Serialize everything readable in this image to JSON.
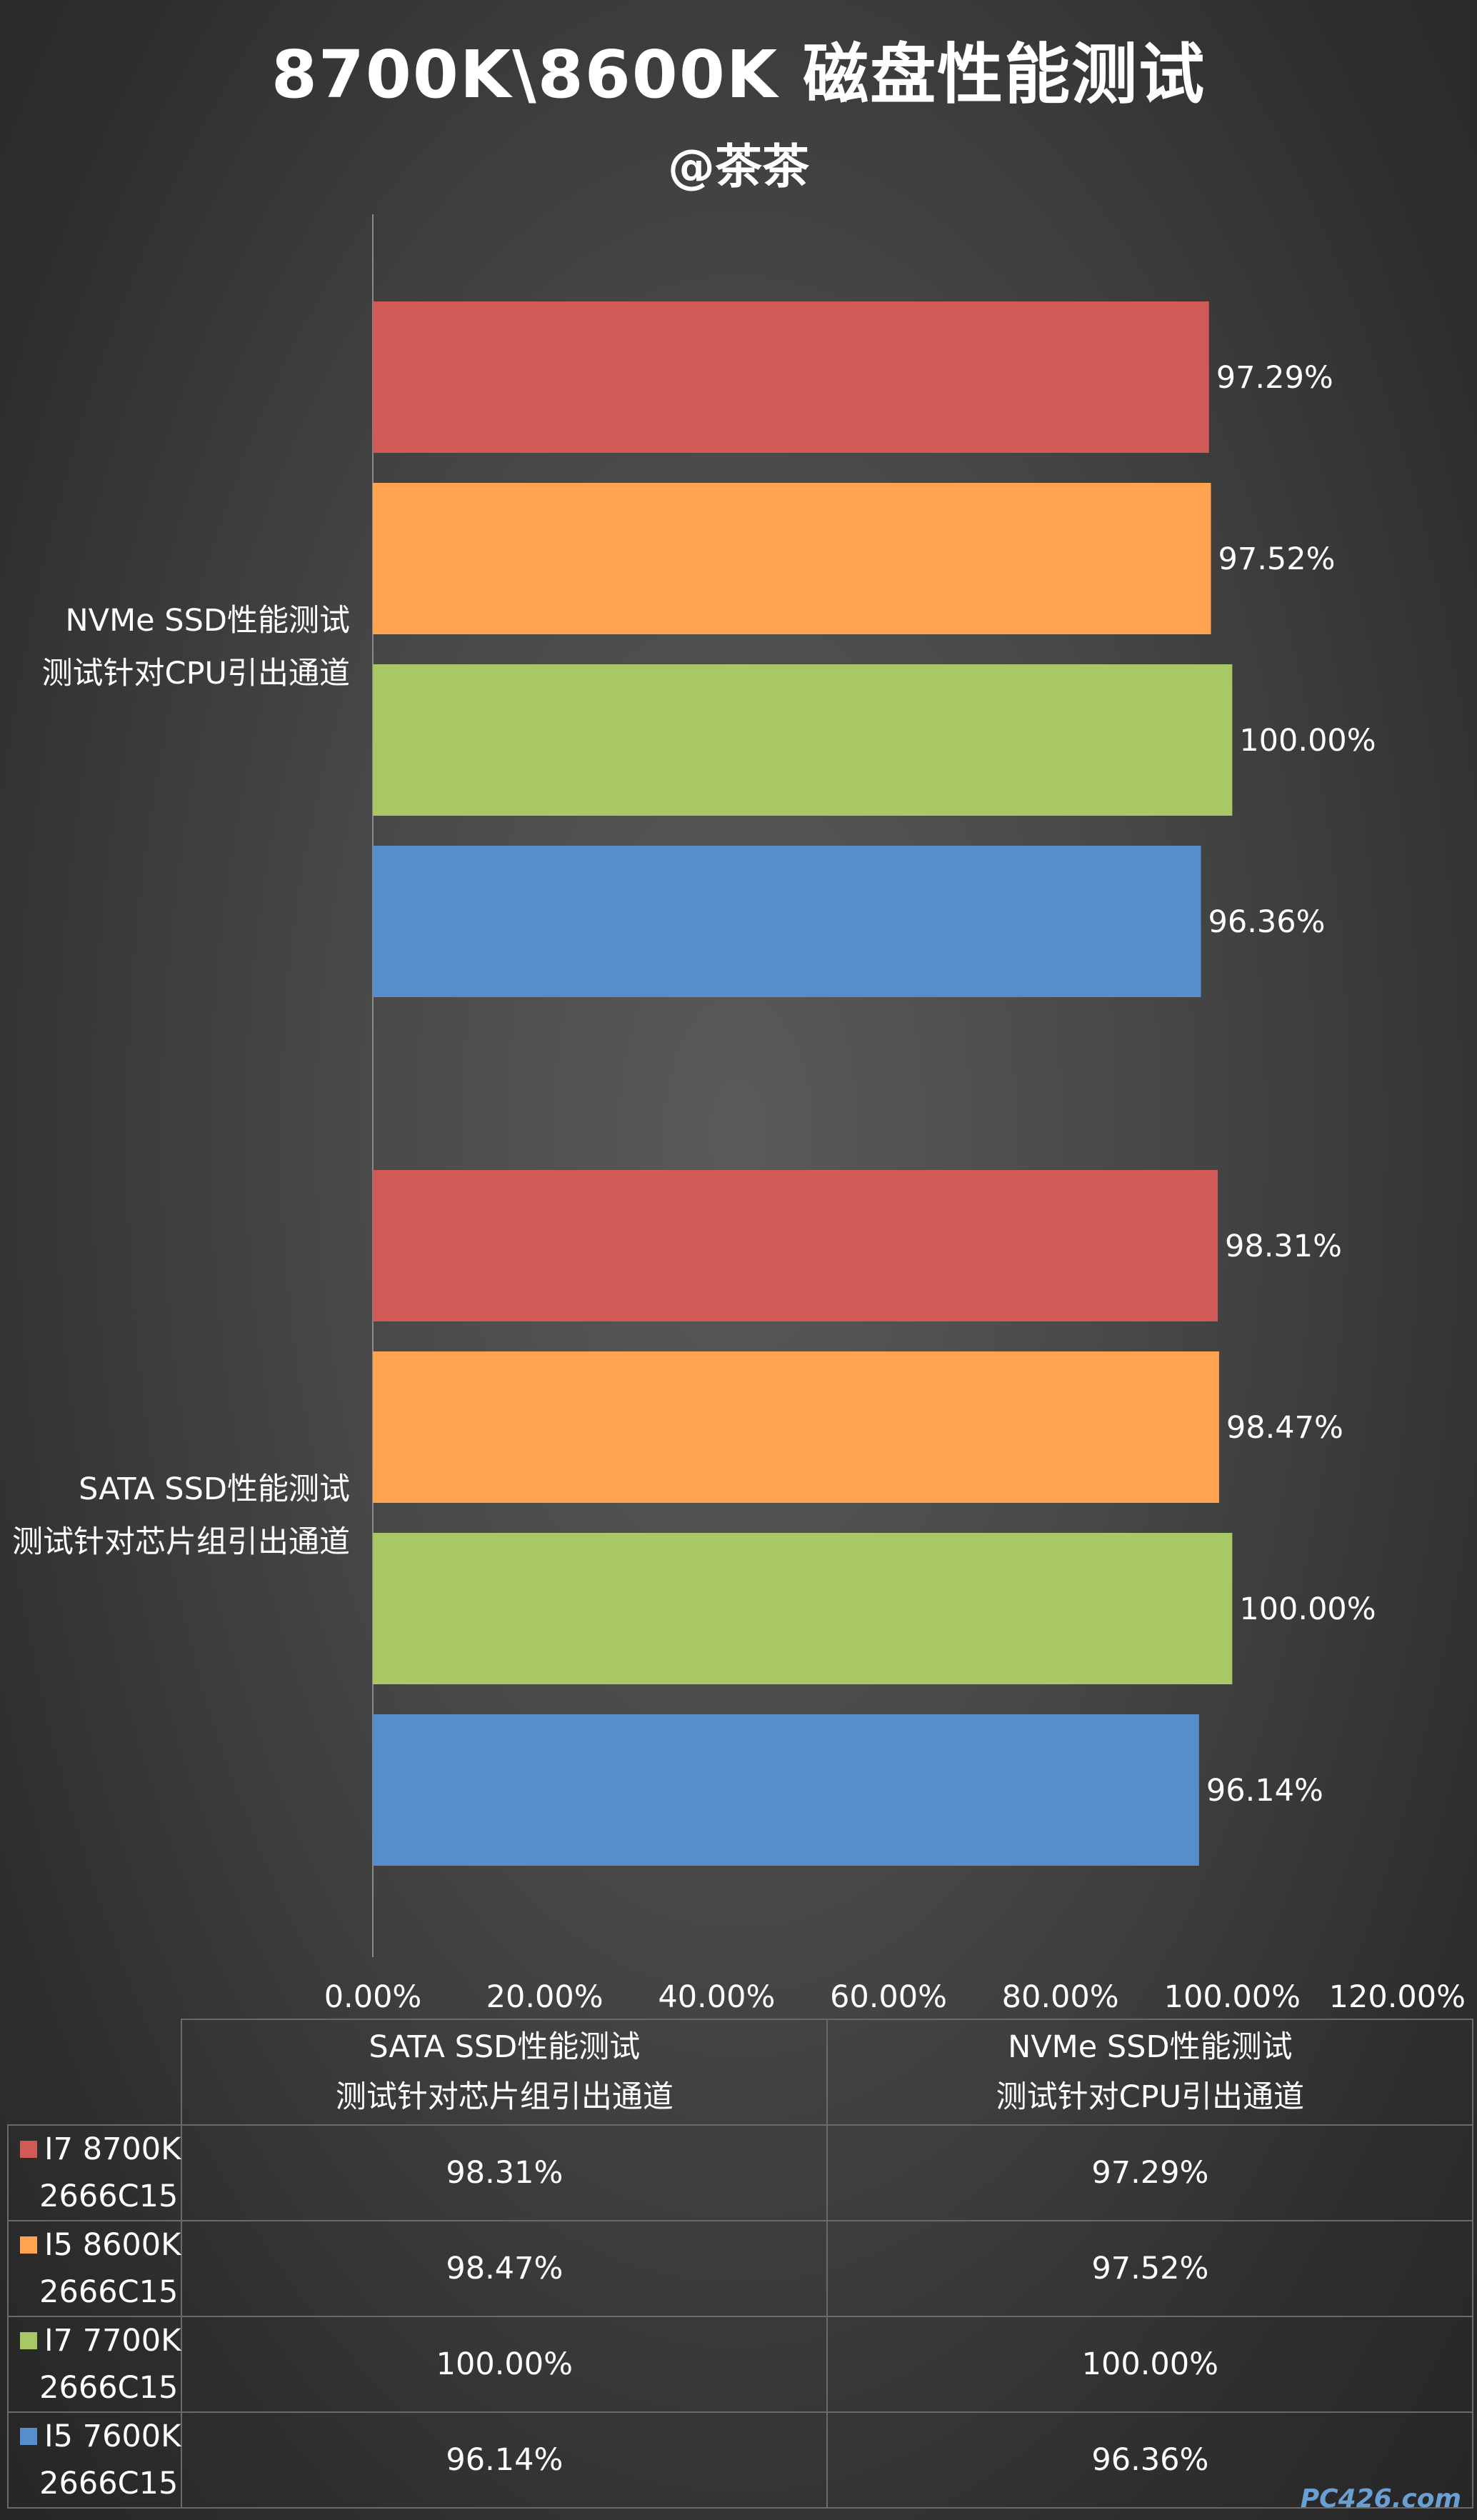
{
  "title": "8700K\\8600K 磁盘性能测试",
  "subtitle": "@茶茶",
  "watermark": "PC426.com",
  "chart_data": {
    "type": "bar",
    "orientation": "horizontal",
    "title": "8700K\\8600K 磁盘性能测试",
    "categories": [
      {
        "line1": "SATA SSD性能测试",
        "line2": "测试针对芯片组引出通道"
      },
      {
        "line1": "NVMe SSD性能测试",
        "line2": "测试针对CPU引出通道"
      }
    ],
    "series": [
      {
        "name_line1": "I7 8700K",
        "name_line2": "2666C15",
        "color": "#d05a57",
        "values": [
          98.31,
          97.29
        ],
        "labels": [
          "98.31%",
          "97.29%"
        ]
      },
      {
        "name_line1": "I5 8600K",
        "name_line2": "2666C15",
        "color": "#ffa350",
        "values": [
          98.47,
          97.52
        ],
        "labels": [
          "98.47%",
          "97.52%"
        ]
      },
      {
        "name_line1": "I7 7700K",
        "name_line2": "2666C15",
        "color": "#a7c865",
        "values": [
          100.0,
          100.0
        ],
        "labels": [
          "100.00%",
          "100.00%"
        ]
      },
      {
        "name_line1": "I5 7600K",
        "name_line2": "2666C15",
        "color": "#578ccd",
        "values": [
          96.14,
          96.36
        ],
        "labels": [
          "96.14%",
          "96.36%"
        ]
      }
    ],
    "x_ticks": [
      "0.00%",
      "20.00%",
      "40.00%",
      "60.00%",
      "80.00%",
      "100.00%",
      "120.00%"
    ],
    "xlim": [
      0,
      120
    ],
    "grid": false,
    "legend": "data-table"
  }
}
